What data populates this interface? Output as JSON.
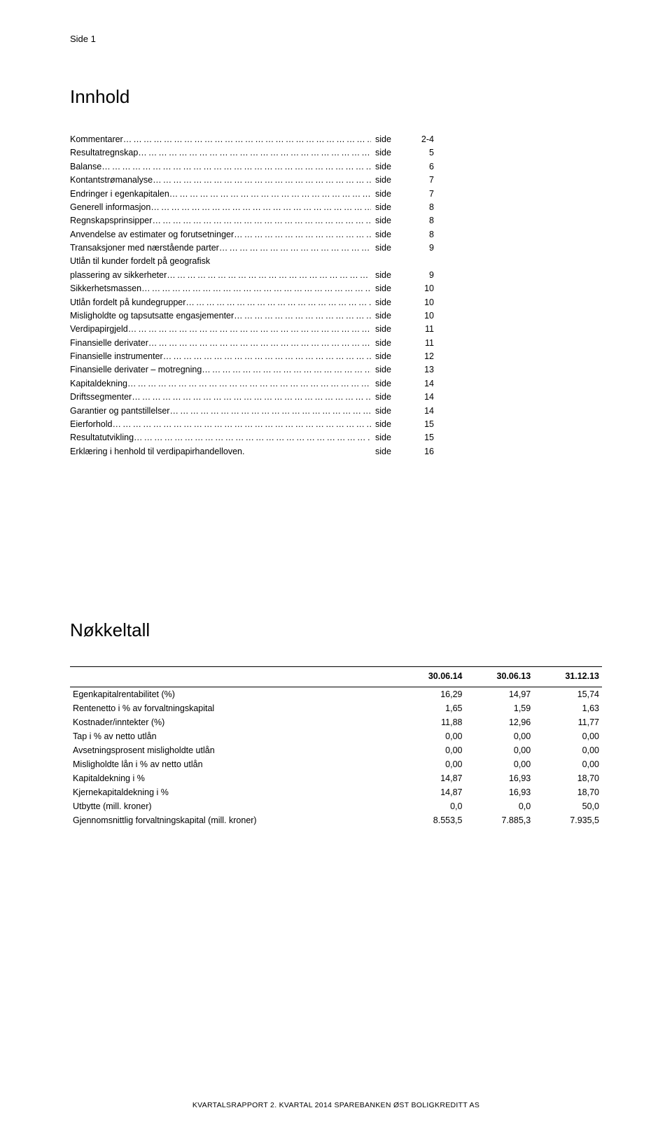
{
  "page_label": "Side 1",
  "titles": {
    "toc": "Innhold",
    "key_figures": "Nøkkeltall"
  },
  "toc_side_word": "side",
  "toc": [
    {
      "label": "Kommentarer",
      "page": "2-4"
    },
    {
      "label": "Resultatregnskap",
      "page": "5"
    },
    {
      "label": "Balanse",
      "page": "6"
    },
    {
      "label": "Kontantstrømanalyse",
      "page": "7"
    },
    {
      "label": "Endringer i egenkapitalen",
      "page": "7"
    },
    {
      "label": "Generell informasjon",
      "page": "8"
    },
    {
      "label": "Regnskapsprinsipper",
      "page": "8"
    },
    {
      "label": "Anvendelse av estimater og forutsetninger",
      "page": "8"
    },
    {
      "label": "Transaksjoner med nærstående parter",
      "page": "9"
    },
    {
      "label": "Utlån til kunder fordelt på geografisk",
      "cont": true
    },
    {
      "label": "plassering av sikkerheter",
      "page": "9"
    },
    {
      "label": "Sikkerhetsmassen",
      "page": "10"
    },
    {
      "label": "Utlån fordelt på kundegrupper",
      "page": "10"
    },
    {
      "label": "Misligholdte og tapsutsatte engasjementer",
      "page": "10"
    },
    {
      "label": "Verdipapirgjeld",
      "page": "11"
    },
    {
      "label": "Finansielle derivater",
      "page": "11"
    },
    {
      "label": "Finansielle instrumenter",
      "page": "12"
    },
    {
      "label": "Finansielle derivater – motregning",
      "page": "13"
    },
    {
      "label": "Kapitaldekning",
      "page": "14"
    },
    {
      "label": "Driftssegmenter",
      "page": "14"
    },
    {
      "label": "Garantier og pantstillelser",
      "page": "14"
    },
    {
      "label": "Eierforhold",
      "page": "15"
    },
    {
      "label": "Resultatutvikling",
      "page": "15"
    },
    {
      "label": "Erklæring i henhold til verdipapirhandelloven.",
      "page": "16",
      "nodots": true
    }
  ],
  "key_table": {
    "columns": [
      "",
      "30.06.14",
      "30.06.13",
      "31.12.13"
    ],
    "rows": [
      [
        "Egenkapitalrentabilitet (%)",
        "16,29",
        "14,97",
        "15,74"
      ],
      [
        "Rentenetto i % av forvaltningskapital",
        "1,65",
        "1,59",
        "1,63"
      ],
      [
        "Kostnader/inntekter (%)",
        "11,88",
        "12,96",
        "11,77"
      ],
      [
        "Tap i % av netto utlån",
        "0,00",
        "0,00",
        "0,00"
      ],
      [
        "Avsetningsprosent misligholdte utlån",
        "0,00",
        "0,00",
        "0,00"
      ],
      [
        "Misligholdte lån i % av netto utlån",
        "0,00",
        "0,00",
        "0,00"
      ],
      [
        "Kapitaldekning i %",
        "14,87",
        "16,93",
        "18,70"
      ],
      [
        "Kjernekapitaldekning i %",
        "14,87",
        "16,93",
        "18,70"
      ],
      [
        "Utbytte (mill. kroner)",
        "0,0",
        "0,0",
        "50,0"
      ],
      [
        "Gjennomsnittlig forvaltningskapital (mill. kroner)",
        "8.553,5",
        "7.885,3",
        "7.935,5"
      ]
    ]
  },
  "footer": "KVARTALSRAPPORT 2. KVARTAL 2014 SPAREBANKEN ØST BOLIGKREDITT AS"
}
